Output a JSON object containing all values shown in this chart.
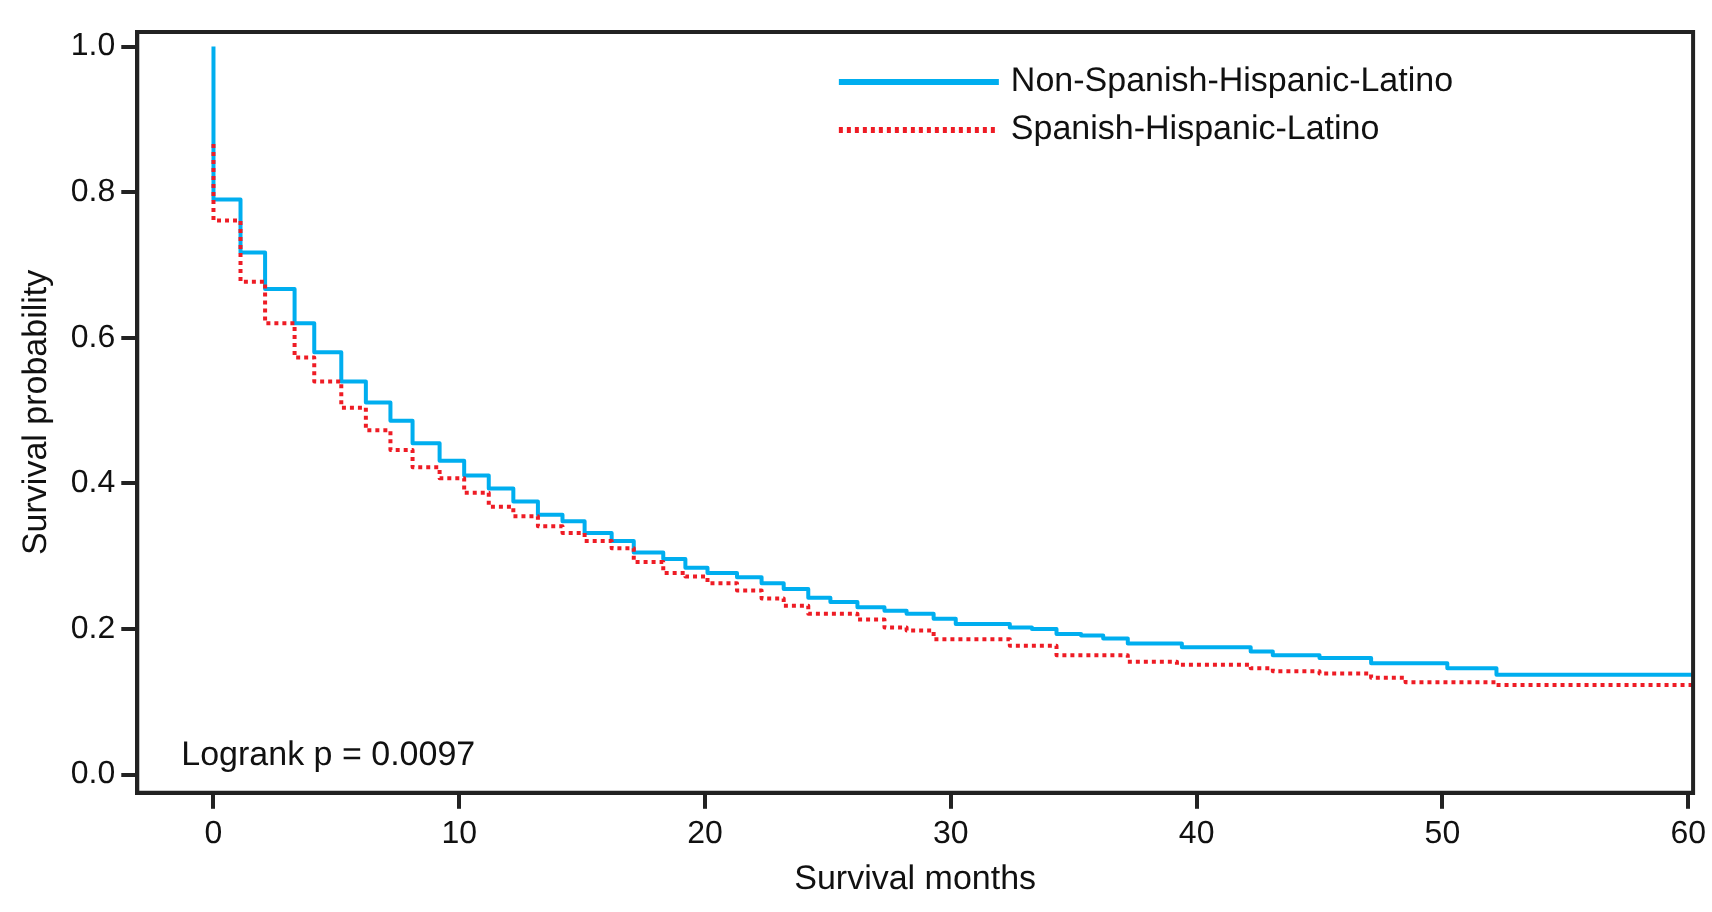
{
  "chart_data": {
    "type": "step",
    "xlabel": "Survival months",
    "ylabel": "Survival probability",
    "xlim": [
      -3.1,
      60.2
    ],
    "ylim": [
      -0.025,
      1.02
    ],
    "xticks": [
      0,
      10,
      20,
      30,
      40,
      50,
      60
    ],
    "yticks": [
      {
        "value": 0,
        "label": "0.0"
      },
      {
        "value": 0.2,
        "label": "0.2"
      },
      {
        "value": 0.4,
        "label": "0.4"
      },
      {
        "value": 0.6,
        "label": "0.6"
      },
      {
        "value": 0.8,
        "label": "0.8"
      },
      {
        "value": 1,
        "label": "1.0"
      }
    ],
    "grid": false,
    "legend": "top right",
    "marker": "none",
    "annotations": [
      "Logrank p = 0.0097"
    ],
    "series": [
      {
        "name": "Non-Spanish-Hispanic-Latino",
        "color": "#00aeef",
        "line_style": "solid",
        "x": [
          0,
          0,
          1.1,
          2.1,
          3.3,
          4.1,
          5.2,
          6.2,
          7.2,
          8.1,
          9.2,
          10.2,
          11.2,
          12.2,
          13.2,
          14.2,
          15.1,
          16.2,
          17.1,
          18.3,
          19.2,
          20.1,
          21.3,
          22.3,
          23.2,
          24.2,
          25.1,
          26.2,
          27.3,
          28.2,
          29.3,
          30.2,
          32.4,
          33.3,
          34.3,
          35.3,
          36.2,
          37.2,
          39.4,
          42.2,
          43.1,
          45.0,
          47.1,
          50.2,
          52.2,
          59.2,
          60.2
        ],
        "values": [
          1.0,
          0.88,
          0.79,
          0.717,
          0.667,
          0.62,
          0.58,
          0.54,
          0.511,
          0.486,
          0.455,
          0.431,
          0.411,
          0.393,
          0.375,
          0.357,
          0.348,
          0.332,
          0.321,
          0.305,
          0.296,
          0.284,
          0.277,
          0.271,
          0.263,
          0.255,
          0.243,
          0.237,
          0.23,
          0.225,
          0.221,
          0.214,
          0.207,
          0.202,
          0.2,
          0.193,
          0.191,
          0.187,
          0.18,
          0.175,
          0.169,
          0.164,
          0.16,
          0.153,
          0.146,
          0.137,
          0.137
        ]
      },
      {
        "name": "Spanish-Hispanic-Latino",
        "color": "#ee1c25",
        "line_style": "dotted",
        "x": [
          0,
          1.1,
          2.1,
          3.3,
          4.1,
          5.2,
          6.2,
          7.2,
          8.1,
          9.2,
          10.2,
          11.2,
          12.2,
          13.2,
          14.2,
          15.1,
          16.2,
          17.1,
          18.3,
          19.2,
          20.1,
          21.3,
          22.3,
          23.2,
          24.2,
          26.2,
          27.3,
          28.2,
          29.3,
          32.4,
          34.3,
          37.2,
          39.2,
          42.2,
          43.1,
          45.0,
          47.1,
          48.5,
          52.2,
          59.2,
          60.2
        ],
        "values": [
          0.866,
          0.761,
          0.677,
          0.62,
          0.573,
          0.54,
          0.504,
          0.473,
          0.446,
          0.422,
          0.407,
          0.387,
          0.368,
          0.355,
          0.341,
          0.332,
          0.321,
          0.311,
          0.292,
          0.277,
          0.272,
          0.263,
          0.253,
          0.242,
          0.232,
          0.221,
          0.213,
          0.202,
          0.198,
          0.186,
          0.177,
          0.164,
          0.155,
          0.151,
          0.146,
          0.142,
          0.139,
          0.133,
          0.127,
          0.123,
          0.123
        ]
      }
    ]
  }
}
